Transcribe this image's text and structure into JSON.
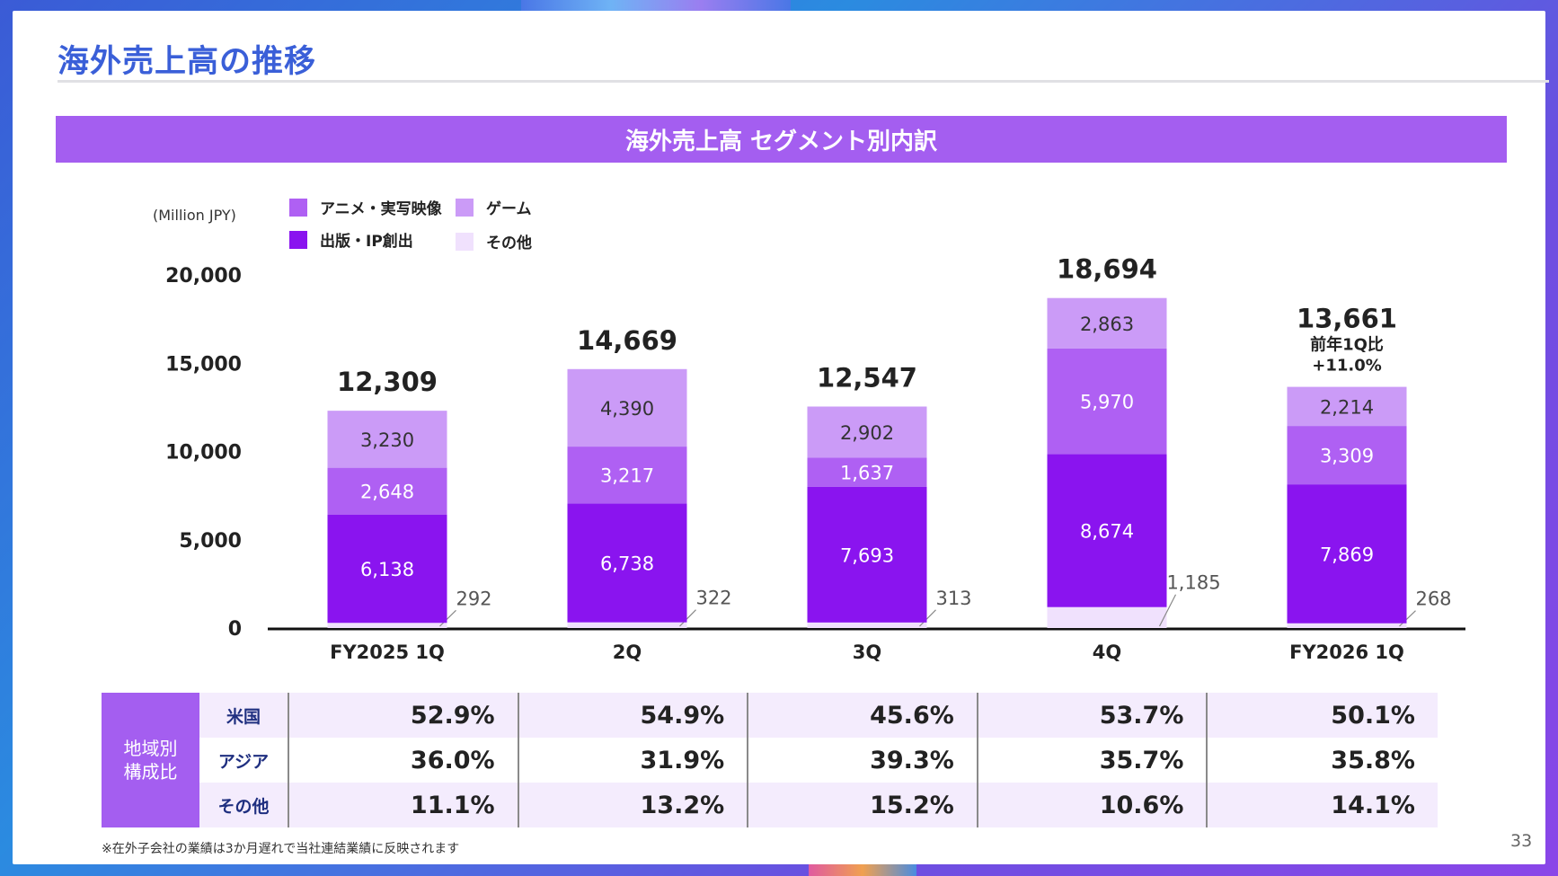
{
  "page": {
    "title": "海外売上高の推移",
    "page_number": "33"
  },
  "banner": {
    "title": "海外売上高 セグメント別内訳"
  },
  "legend": {
    "unit": "(Million JPY)",
    "items": [
      {
        "label": "アニメ・実写映像",
        "color": "#af60f3"
      },
      {
        "label": "ゲーム",
        "color": "#cb9bf7"
      },
      {
        "label": "出版・IP創出",
        "color": "#8a14ef"
      },
      {
        "label": "その他",
        "color": "#f0e1fd"
      }
    ]
  },
  "chart_data": {
    "type": "bar",
    "stacked": true,
    "categories": [
      "FY2025 1Q",
      "2Q",
      "3Q",
      "4Q",
      "FY2026 1Q"
    ],
    "series": [
      {
        "name": "その他",
        "values": [
          292,
          322,
          313,
          1185,
          268
        ],
        "color": "#f0e1fd"
      },
      {
        "name": "出版・IP創出",
        "values": [
          6138,
          6738,
          7693,
          8674,
          7869
        ],
        "color": "#8a14ef"
      },
      {
        "name": "アニメ・実写映像",
        "values": [
          2648,
          3217,
          1637,
          5970,
          3309
        ],
        "color": "#af60f3"
      },
      {
        "name": "ゲーム",
        "values": [
          3230,
          4390,
          2902,
          2863,
          2214
        ],
        "color": "#cb9bf7"
      }
    ],
    "totals": [
      "12,309",
      "14,669",
      "12,547",
      "18,694",
      "13,661"
    ],
    "value_labels": {
      "その他": [
        "292",
        "322",
        "313",
        "1,185",
        "268"
      ],
      "出版・IP創出": [
        "6,138",
        "6,738",
        "7,693",
        "8,674",
        "7,869"
      ],
      "アニメ・実写映像": [
        "2,648",
        "3,217",
        "1,637",
        "5,970",
        "3,309"
      ],
      "ゲーム": [
        "3,230",
        "4,390",
        "2,902",
        "2,863",
        "2,214"
      ]
    },
    "yticks": [
      "0",
      "5,000",
      "10,000",
      "15,000",
      "20,000"
    ],
    "ylim": [
      0,
      20000
    ],
    "annotation": {
      "category": "FY2026 1Q",
      "lines": [
        "前年1Q比",
        "+11.0%"
      ]
    },
    "grid": false,
    "legend_position": "top-left"
  },
  "region_table": {
    "side_label": [
      "地域別",
      "構成比"
    ],
    "rows": [
      {
        "label": "米国",
        "values": [
          "52.9%",
          "54.9%",
          "45.6%",
          "53.7%",
          "50.1%"
        ]
      },
      {
        "label": "アジア",
        "values": [
          "36.0%",
          "31.9%",
          "39.3%",
          "35.7%",
          "35.8%"
        ]
      },
      {
        "label": "その他",
        "values": [
          "11.1%",
          "13.2%",
          "15.2%",
          "10.6%",
          "14.1%"
        ]
      }
    ]
  },
  "footnote": "※在外子会社の業績は3か月遅れで当社連結業績に反映されます"
}
